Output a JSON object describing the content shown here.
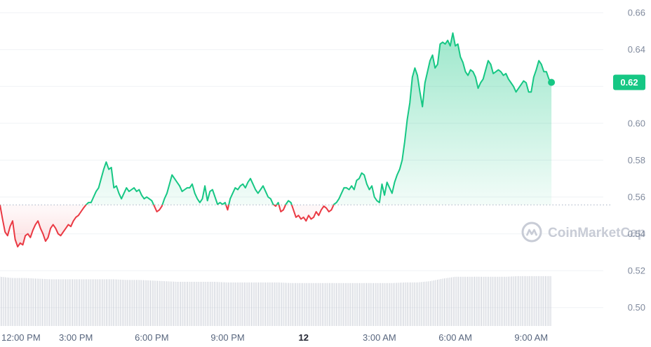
{
  "chart_data": {
    "type": "line",
    "x_tick_labels": [
      "12:00 PM",
      "3:00 PM",
      "6:00 PM",
      "9:00 PM",
      "12",
      "3:00 AM",
      "6:00 AM",
      "9:00 AM"
    ],
    "y_tick_labels": [
      "0.66",
      "0.64",
      "0.62",
      "0.60",
      "0.58",
      "0.56",
      "0.54",
      "0.52",
      "0.50"
    ],
    "ylim": [
      0.49,
      0.665
    ],
    "xlim": [
      0,
      23.85
    ],
    "baseline": 0.5557,
    "current_price_label": "0.62",
    "current_price": 0.6222,
    "watermark": "CoinMarketCap",
    "colors": {
      "up": "#16c784",
      "down": "#ea3943",
      "volume": "#c7cbd4",
      "grid": "#eff2f5",
      "axis_text": "#808a9d"
    },
    "series": [
      {
        "values": [
          [
            0.0,
            0.5557
          ],
          [
            0.1,
            0.548
          ],
          [
            0.2,
            0.541
          ],
          [
            0.3,
            0.539
          ],
          [
            0.4,
            0.544
          ],
          [
            0.5,
            0.547
          ],
          [
            0.6,
            0.537
          ],
          [
            0.7,
            0.533
          ],
          [
            0.8,
            0.535
          ],
          [
            0.9,
            0.534
          ],
          [
            1.0,
            0.539
          ],
          [
            1.1,
            0.54
          ],
          [
            1.2,
            0.538
          ],
          [
            1.3,
            0.542
          ],
          [
            1.4,
            0.545
          ],
          [
            1.5,
            0.547
          ],
          [
            1.6,
            0.543
          ],
          [
            1.7,
            0.54
          ],
          [
            1.8,
            0.536
          ],
          [
            1.9,
            0.538
          ],
          [
            2.0,
            0.543
          ],
          [
            2.1,
            0.545
          ],
          [
            2.2,
            0.543
          ],
          [
            2.3,
            0.54
          ],
          [
            2.4,
            0.539
          ],
          [
            2.5,
            0.541
          ],
          [
            2.6,
            0.543
          ],
          [
            2.7,
            0.545
          ],
          [
            2.8,
            0.544
          ],
          [
            2.9,
            0.547
          ],
          [
            3.0,
            0.549
          ],
          [
            3.1,
            0.55
          ],
          [
            3.2,
            0.552
          ],
          [
            3.3,
            0.554
          ],
          [
            3.4,
            0.5557
          ],
          [
            3.5,
            0.557
          ],
          [
            3.6,
            0.557
          ],
          [
            3.7,
            0.56
          ],
          [
            3.8,
            0.563
          ],
          [
            3.9,
            0.565
          ],
          [
            4.0,
            0.57
          ],
          [
            4.1,
            0.575
          ],
          [
            4.2,
            0.579
          ],
          [
            4.3,
            0.575
          ],
          [
            4.4,
            0.576
          ],
          [
            4.5,
            0.565
          ],
          [
            4.6,
            0.566
          ],
          [
            4.7,
            0.562
          ],
          [
            4.8,
            0.559
          ],
          [
            4.9,
            0.562
          ],
          [
            5.0,
            0.565
          ],
          [
            5.1,
            0.563
          ],
          [
            5.2,
            0.564
          ],
          [
            5.3,
            0.565
          ],
          [
            5.4,
            0.563
          ],
          [
            5.5,
            0.564
          ],
          [
            5.6,
            0.561
          ],
          [
            5.7,
            0.559
          ],
          [
            5.8,
            0.56
          ],
          [
            5.9,
            0.559
          ],
          [
            6.0,
            0.558
          ],
          [
            6.1,
            0.555
          ],
          [
            6.2,
            0.552
          ],
          [
            6.3,
            0.553
          ],
          [
            6.4,
            0.555
          ],
          [
            6.5,
            0.559
          ],
          [
            6.6,
            0.562
          ],
          [
            6.7,
            0.567
          ],
          [
            6.8,
            0.572
          ],
          [
            6.9,
            0.57
          ],
          [
            7.0,
            0.568
          ],
          [
            7.1,
            0.566
          ],
          [
            7.2,
            0.563
          ],
          [
            7.3,
            0.564
          ],
          [
            7.4,
            0.565
          ],
          [
            7.5,
            0.565
          ],
          [
            7.6,
            0.567
          ],
          [
            7.7,
            0.562
          ],
          [
            7.8,
            0.559
          ],
          [
            7.9,
            0.557
          ],
          [
            8.0,
            0.559
          ],
          [
            8.1,
            0.566
          ],
          [
            8.2,
            0.558
          ],
          [
            8.3,
            0.563
          ],
          [
            8.4,
            0.564
          ],
          [
            8.5,
            0.56
          ],
          [
            8.6,
            0.556
          ],
          [
            8.7,
            0.557
          ],
          [
            8.8,
            0.556
          ],
          [
            8.9,
            0.557
          ],
          [
            9.0,
            0.553
          ],
          [
            9.1,
            0.559
          ],
          [
            9.2,
            0.562
          ],
          [
            9.3,
            0.565
          ],
          [
            9.4,
            0.564
          ],
          [
            9.5,
            0.566
          ],
          [
            9.6,
            0.567
          ],
          [
            9.7,
            0.565
          ],
          [
            9.8,
            0.568
          ],
          [
            9.9,
            0.57
          ],
          [
            10.0,
            0.567
          ],
          [
            10.1,
            0.564
          ],
          [
            10.2,
            0.562
          ],
          [
            10.3,
            0.564
          ],
          [
            10.4,
            0.566
          ],
          [
            10.5,
            0.563
          ],
          [
            10.6,
            0.56
          ],
          [
            10.7,
            0.559
          ],
          [
            10.8,
            0.556
          ],
          [
            10.9,
            0.555
          ],
          [
            11.0,
            0.557
          ],
          [
            11.1,
            0.552
          ],
          [
            11.2,
            0.553
          ],
          [
            11.3,
            0.556
          ],
          [
            11.4,
            0.558
          ],
          [
            11.5,
            0.557
          ],
          [
            11.6,
            0.553
          ],
          [
            11.7,
            0.549
          ],
          [
            11.8,
            0.55
          ],
          [
            11.9,
            0.548
          ],
          [
            12.0,
            0.549
          ],
          [
            12.1,
            0.547
          ],
          [
            12.2,
            0.55
          ],
          [
            12.3,
            0.548
          ],
          [
            12.4,
            0.549
          ],
          [
            12.5,
            0.552
          ],
          [
            12.6,
            0.55
          ],
          [
            12.7,
            0.553
          ],
          [
            12.8,
            0.555
          ],
          [
            12.9,
            0.554
          ],
          [
            13.0,
            0.552
          ],
          [
            13.1,
            0.553
          ],
          [
            13.2,
            0.556
          ],
          [
            13.3,
            0.557
          ],
          [
            13.4,
            0.559
          ],
          [
            13.5,
            0.562
          ],
          [
            13.6,
            0.565
          ],
          [
            13.7,
            0.565
          ],
          [
            13.8,
            0.564
          ],
          [
            13.9,
            0.566
          ],
          [
            14.0,
            0.564
          ],
          [
            14.1,
            0.569
          ],
          [
            14.2,
            0.57
          ],
          [
            14.3,
            0.573
          ],
          [
            14.4,
            0.572
          ],
          [
            14.5,
            0.567
          ],
          [
            14.6,
            0.564
          ],
          [
            14.7,
            0.566
          ],
          [
            14.8,
            0.56
          ],
          [
            14.9,
            0.558
          ],
          [
            15.0,
            0.557
          ],
          [
            15.1,
            0.567
          ],
          [
            15.2,
            0.561
          ],
          [
            15.3,
            0.568
          ],
          [
            15.4,
            0.565
          ],
          [
            15.5,
            0.562
          ],
          [
            15.6,
            0.568
          ],
          [
            15.7,
            0.572
          ],
          [
            15.8,
            0.575
          ],
          [
            15.9,
            0.58
          ],
          [
            16.0,
            0.59
          ],
          [
            16.1,
            0.602
          ],
          [
            16.2,
            0.611
          ],
          [
            16.3,
            0.625
          ],
          [
            16.4,
            0.63
          ],
          [
            16.5,
            0.626
          ],
          [
            16.6,
            0.617
          ],
          [
            16.7,
            0.609
          ],
          [
            16.8,
            0.622
          ],
          [
            16.9,
            0.628
          ],
          [
            17.0,
            0.634
          ],
          [
            17.1,
            0.637
          ],
          [
            17.2,
            0.63
          ],
          [
            17.3,
            0.632
          ],
          [
            17.4,
            0.643
          ],
          [
            17.5,
            0.644
          ],
          [
            17.6,
            0.643
          ],
          [
            17.7,
            0.645
          ],
          [
            17.8,
            0.642
          ],
          [
            17.9,
            0.649
          ],
          [
            18.0,
            0.642
          ],
          [
            18.1,
            0.643
          ],
          [
            18.2,
            0.636
          ],
          [
            18.3,
            0.633
          ],
          [
            18.4,
            0.628
          ],
          [
            18.5,
            0.626
          ],
          [
            18.6,
            0.629
          ],
          [
            18.7,
            0.628
          ],
          [
            18.8,
            0.625
          ],
          [
            18.9,
            0.619
          ],
          [
            19.0,
            0.622
          ],
          [
            19.1,
            0.624
          ],
          [
            19.2,
            0.629
          ],
          [
            19.3,
            0.634
          ],
          [
            19.4,
            0.632
          ],
          [
            19.5,
            0.627
          ],
          [
            19.6,
            0.628
          ],
          [
            19.7,
            0.629
          ],
          [
            19.8,
            0.628
          ],
          [
            19.9,
            0.626
          ],
          [
            20.0,
            0.627
          ],
          [
            20.1,
            0.624
          ],
          [
            20.2,
            0.622
          ],
          [
            20.3,
            0.62
          ],
          [
            20.4,
            0.617
          ],
          [
            20.5,
            0.619
          ],
          [
            20.6,
            0.621
          ],
          [
            20.7,
            0.623
          ],
          [
            20.8,
            0.622
          ],
          [
            20.9,
            0.617
          ],
          [
            21.0,
            0.617
          ],
          [
            21.1,
            0.625
          ],
          [
            21.2,
            0.629
          ],
          [
            21.3,
            0.634
          ],
          [
            21.4,
            0.632
          ],
          [
            21.5,
            0.628
          ],
          [
            21.6,
            0.628
          ],
          [
            21.7,
            0.624
          ],
          [
            21.8,
            0.6222
          ]
        ]
      }
    ],
    "volume_relative": [
      [
        0.0,
        0.78
      ],
      [
        0.5,
        0.76
      ],
      [
        1.0,
        0.76
      ],
      [
        1.5,
        0.75
      ],
      [
        2.0,
        0.74
      ],
      [
        2.5,
        0.74
      ],
      [
        3.0,
        0.74
      ],
      [
        3.5,
        0.74
      ],
      [
        4.0,
        0.74
      ],
      [
        4.5,
        0.74
      ],
      [
        5.0,
        0.73
      ],
      [
        5.5,
        0.73
      ],
      [
        6.0,
        0.72
      ],
      [
        6.5,
        0.71
      ],
      [
        7.0,
        0.7
      ],
      [
        7.5,
        0.7
      ],
      [
        8.0,
        0.7
      ],
      [
        8.5,
        0.7
      ],
      [
        9.0,
        0.69
      ],
      [
        9.5,
        0.69
      ],
      [
        10.0,
        0.69
      ],
      [
        10.5,
        0.69
      ],
      [
        11.0,
        0.69
      ],
      [
        11.5,
        0.68
      ],
      [
        12.0,
        0.68
      ],
      [
        12.5,
        0.68
      ],
      [
        13.0,
        0.68
      ],
      [
        13.5,
        0.68
      ],
      [
        14.0,
        0.68
      ],
      [
        14.5,
        0.68
      ],
      [
        15.0,
        0.68
      ],
      [
        15.5,
        0.68
      ],
      [
        16.0,
        0.69
      ],
      [
        16.5,
        0.69
      ],
      [
        17.0,
        0.71
      ],
      [
        17.5,
        0.75
      ],
      [
        18.0,
        0.78
      ],
      [
        18.5,
        0.78
      ],
      [
        19.0,
        0.78
      ],
      [
        19.5,
        0.78
      ],
      [
        20.0,
        0.78
      ],
      [
        20.5,
        0.79
      ],
      [
        21.0,
        0.79
      ],
      [
        21.5,
        0.79
      ],
      [
        21.8,
        0.79
      ]
    ]
  }
}
